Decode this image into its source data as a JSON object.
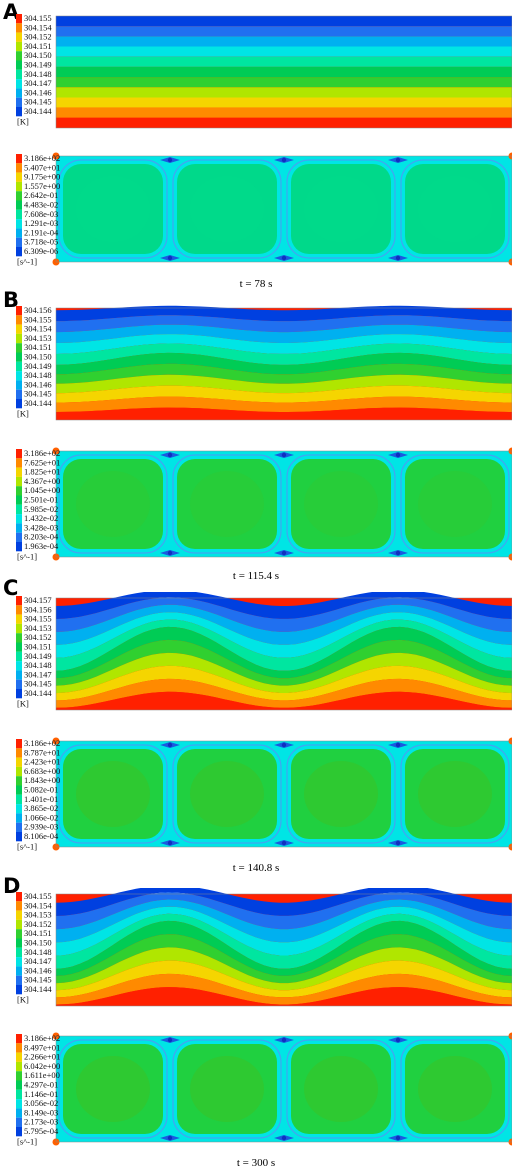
{
  "panels": [
    {
      "letter": "A",
      "caption": "t = 78 s",
      "temperature": {
        "unit": "[K]",
        "labels": [
          "304.155",
          "304.154",
          "304.152",
          "304.151",
          "304.150",
          "304.149",
          "304.148",
          "304.147",
          "304.146",
          "304.145",
          "304.144"
        ]
      },
      "strain": {
        "unit": "[s^-1]",
        "labels": [
          "3.186e+02",
          "5.407e+01",
          "9.175e+00",
          "1.557e+00",
          "2.642e-01",
          "4.483e-02",
          "7.608e-03",
          "1.291e-03",
          "2.191e-04",
          "3.718e-05",
          "6.309e-06"
        ]
      }
    },
    {
      "letter": "B",
      "caption": "t = 115.4 s",
      "temperature": {
        "unit": "[K]",
        "labels": [
          "304.156",
          "304.155",
          "304.154",
          "304.153",
          "304.151",
          "304.150",
          "304.149",
          "304.148",
          "304.146",
          "304.145",
          "304.144"
        ]
      },
      "strain": {
        "unit": "[s^-1]",
        "labels": [
          "3.186e+02",
          "7.625e+01",
          "1.825e+01",
          "4.367e+00",
          "1.045e+00",
          "2.501e-01",
          "5.985e-02",
          "1.432e-02",
          "3.428e-03",
          "8.203e-04",
          "1.963e-04"
        ]
      }
    },
    {
      "letter": "C",
      "caption": "t = 140.8 s",
      "temperature": {
        "unit": "[K]",
        "labels": [
          "304.157",
          "304.156",
          "304.155",
          "304.153",
          "304.152",
          "304.151",
          "304.149",
          "304.148",
          "304.147",
          "304.145",
          "304.144"
        ]
      },
      "strain": {
        "unit": "[s^-1]",
        "labels": [
          "3.186e+02",
          "8.787e+01",
          "2.423e+01",
          "6.683e+00",
          "1.843e+00",
          "5.082e-01",
          "1.401e-01",
          "3.865e-02",
          "1.066e-02",
          "2.939e-03",
          "8.106e-04"
        ]
      }
    },
    {
      "letter": "D",
      "caption": "t = 300 s",
      "temperature": {
        "unit": "[K]",
        "labels": [
          "304.155",
          "304.154",
          "304.153",
          "304.152",
          "304.151",
          "304.150",
          "304.148",
          "304.147",
          "304.146",
          "304.145",
          "304.144"
        ]
      },
      "strain": {
        "unit": "[s^-1]",
        "labels": [
          "3.186e+02",
          "8.497e+01",
          "2.266e+01",
          "6.042e+00",
          "1.611e+00",
          "4.297e-01",
          "1.146e-01",
          "3.056e-02",
          "8.149e-03",
          "2.173e-03",
          "5.795e-04"
        ]
      }
    }
  ],
  "colormap": [
    "#ff2000",
    "#ff8a00",
    "#f5d500",
    "#b0e600",
    "#30d030",
    "#00cc55",
    "#00e6a0",
    "#00e5e5",
    "#00b0f0",
    "#2070f0",
    "#0040e0"
  ]
}
